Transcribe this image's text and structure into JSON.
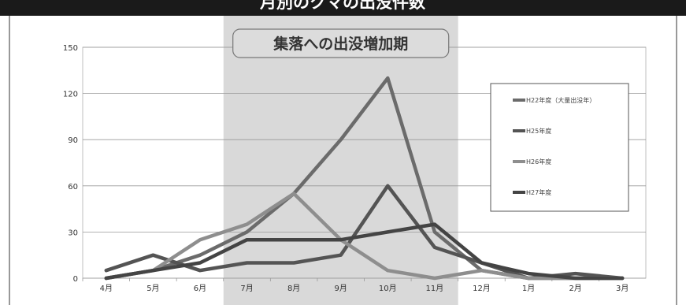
{
  "chart_data": {
    "type": "line",
    "title": "月別のクマの出没件数",
    "categories": [
      "4月",
      "5月",
      "6月",
      "7月",
      "8月",
      "9月",
      "10月",
      "11月",
      "12月",
      "1月",
      "2月",
      "3月"
    ],
    "ylim": [
      0,
      150
    ],
    "yticks": [
      0,
      30,
      60,
      90,
      120,
      150
    ],
    "grid": true,
    "legend_position": "right",
    "highlight": {
      "label": "集落への出没増加期",
      "from": "7月",
      "to": "11月"
    },
    "series": [
      {
        "name": "H22年度（大量出没年）",
        "color": "#6b6b6b",
        "values": [
          0,
          5,
          15,
          30,
          55,
          90,
          130,
          30,
          5,
          0,
          0,
          0
        ]
      },
      {
        "name": "H25年度",
        "color": "#545454",
        "values": [
          5,
          15,
          5,
          10,
          10,
          15,
          60,
          20,
          10,
          0,
          3,
          0
        ]
      },
      {
        "name": "H26年度",
        "color": "#8e8e8e",
        "values": [
          0,
          5,
          25,
          35,
          55,
          25,
          5,
          0,
          5,
          0,
          0,
          0
        ]
      },
      {
        "name": "H27年度",
        "color": "#444444",
        "values": [
          0,
          5,
          10,
          25,
          25,
          25,
          30,
          35,
          10,
          3,
          0,
          0
        ]
      }
    ]
  }
}
